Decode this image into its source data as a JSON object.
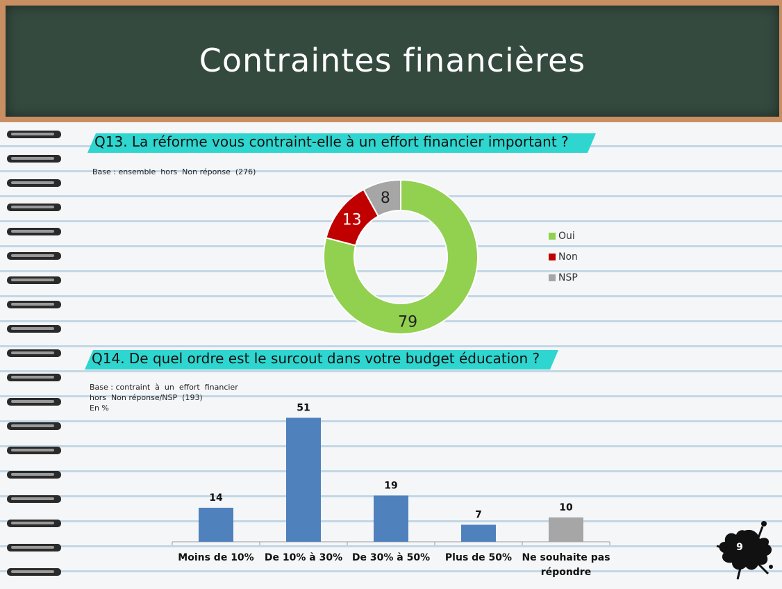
{
  "page": {
    "title": "Contraintes financières",
    "page_number": "9"
  },
  "q13": {
    "question": "Q13. La réforme vous contraint-elle à un effort financier important ?",
    "base": "Base : ensemble  hors  Non réponse  (276)"
  },
  "q14": {
    "question": "Q14. De quel ordre est le surcout dans votre budget éducation ?",
    "base": "Base : contraint  à  un  effort  financier\nhors  Non réponse/NSP  (193)\nEn %"
  },
  "chart_data": [
    {
      "type": "pie",
      "donut": true,
      "categories": [
        "Oui",
        "Non",
        "NSP"
      ],
      "values": [
        79,
        13,
        8
      ],
      "colors": [
        "#92d050",
        "#c00000",
        "#a6a6a6"
      ],
      "legend": "right"
    },
    {
      "type": "bar",
      "categories": [
        "Moins de 10%",
        "De 10% à 30%",
        "De 30% à 50%",
        "Plus de 50%",
        "Ne souhaite pas\nrépondre"
      ],
      "values": [
        14,
        51,
        19,
        7,
        10
      ],
      "colors": [
        "#4f81bd",
        "#4f81bd",
        "#4f81bd",
        "#4f81bd",
        "#a6a6a6"
      ],
      "ylim": [
        0,
        60
      ]
    }
  ]
}
